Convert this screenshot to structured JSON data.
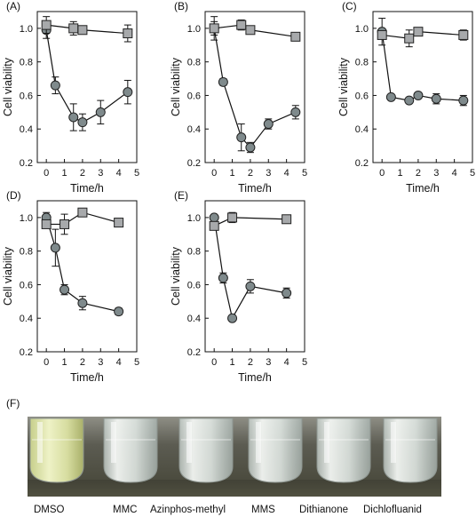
{
  "style": {
    "circle_fill": "#7f8a8c",
    "square_fill": "#a7a9ab",
    "marker_stroke": "#222222",
    "line_color": "#111111"
  },
  "chart_data": [
    {
      "type": "line",
      "panel_label": "(A)",
      "xlabel": "Time/h",
      "ylabel": "Cell viability",
      "xlim": [
        -0.5,
        5
      ],
      "ylim": [
        0.2,
        1.1
      ],
      "xticks": [
        0,
        1,
        2,
        3,
        4,
        5
      ],
      "yticks": [
        0.2,
        0.4,
        0.6,
        0.8,
        1.0
      ],
      "series": [
        {
          "marker": "circle",
          "x": [
            0,
            0.5,
            1.5,
            2,
            3,
            4.5
          ],
          "y": [
            0.99,
            0.66,
            0.47,
            0.44,
            0.5,
            0.62
          ],
          "err": [
            0.05,
            0.05,
            0.08,
            0.05,
            0.07,
            0.07
          ]
        },
        {
          "marker": "square",
          "x": [
            0,
            1.5,
            2,
            4.5
          ],
          "y": [
            1.02,
            1.0,
            0.99,
            0.97
          ],
          "err": [
            0.05,
            0.04,
            0.01,
            0.05
          ]
        }
      ]
    },
    {
      "type": "line",
      "panel_label": "(B)",
      "xlabel": "Time/h",
      "ylabel": "Cell viability",
      "xlim": [
        -0.5,
        5
      ],
      "ylim": [
        0.2,
        1.1
      ],
      "xticks": [
        0,
        1,
        2,
        3,
        4,
        5
      ],
      "yticks": [
        0.2,
        0.4,
        0.6,
        0.8,
        1.0
      ],
      "series": [
        {
          "marker": "circle",
          "x": [
            0,
            0.5,
            1.5,
            2,
            3,
            4.5
          ],
          "y": [
            1.0,
            0.68,
            0.35,
            0.29,
            0.43,
            0.5
          ],
          "err": [
            0.07,
            0.02,
            0.08,
            0.03,
            0.03,
            0.04
          ]
        },
        {
          "marker": "square",
          "x": [
            0,
            1.5,
            2,
            4.5
          ],
          "y": [
            1.0,
            1.02,
            0.99,
            0.95
          ],
          "err": [
            0.04,
            0.03,
            0.01,
            0.01
          ]
        }
      ]
    },
    {
      "type": "line",
      "panel_label": "(C)",
      "xlabel": "Time/h",
      "ylabel": "Cell viability",
      "xlim": [
        -0.5,
        5
      ],
      "ylim": [
        0.2,
        1.1
      ],
      "xticks": [
        0,
        1,
        2,
        3,
        4,
        5
      ],
      "yticks": [
        0.2,
        0.4,
        0.6,
        0.8,
        1.0
      ],
      "series": [
        {
          "marker": "circle",
          "x": [
            0,
            0.5,
            1.5,
            2,
            3,
            4.5
          ],
          "y": [
            0.98,
            0.59,
            0.57,
            0.6,
            0.58,
            0.57
          ],
          "err": [
            0.08,
            0.01,
            0.01,
            0.01,
            0.03,
            0.03
          ]
        },
        {
          "marker": "square",
          "x": [
            0,
            1.5,
            2,
            4.5
          ],
          "y": [
            0.96,
            0.94,
            0.98,
            0.96
          ],
          "err": [
            0.02,
            0.05,
            0.01,
            0.03
          ]
        }
      ]
    },
    {
      "type": "line",
      "panel_label": "(D)",
      "xlabel": "Time/h",
      "ylabel": "Cell viability",
      "xlim": [
        -0.5,
        5
      ],
      "ylim": [
        0.2,
        1.1
      ],
      "xticks": [
        0,
        1,
        2,
        3,
        4,
        5
      ],
      "yticks": [
        0.2,
        0.4,
        0.6,
        0.8,
        1.0
      ],
      "series": [
        {
          "marker": "circle",
          "x": [
            0,
            0.5,
            1,
            2,
            4
          ],
          "y": [
            1.0,
            0.82,
            0.57,
            0.49,
            0.44
          ],
          "err": [
            0.03,
            0.11,
            0.03,
            0.04,
            0.02
          ]
        },
        {
          "marker": "square",
          "x": [
            0,
            1,
            2,
            4
          ],
          "y": [
            0.96,
            0.96,
            1.03,
            0.97
          ],
          "err": [
            0.02,
            0.06,
            0.01,
            0.01
          ]
        }
      ]
    },
    {
      "type": "line",
      "panel_label": "(E)",
      "xlabel": "Time/h",
      "ylabel": "Cell viability",
      "xlim": [
        -0.5,
        5
      ],
      "ylim": [
        0.2,
        1.1
      ],
      "xticks": [
        0,
        1,
        2,
        3,
        4,
        5
      ],
      "yticks": [
        0.2,
        0.4,
        0.6,
        0.8,
        1.0
      ],
      "series": [
        {
          "marker": "circle",
          "x": [
            0,
            0.5,
            1,
            2,
            4
          ],
          "y": [
            1.0,
            0.64,
            0.4,
            0.59,
            0.55
          ],
          "err": [
            0.01,
            0.03,
            0.01,
            0.04,
            0.03
          ]
        },
        {
          "marker": "square",
          "x": [
            0,
            1,
            4
          ],
          "y": [
            0.95,
            1.0,
            0.99
          ],
          "err": [
            0.02,
            0.03,
            0.01
          ]
        }
      ]
    }
  ],
  "photo": {
    "panel_label": "(F)",
    "tube_labels": [
      "DMSO",
      "MMC",
      "Azinphos-methyl",
      "MMS",
      "Dithianone",
      "Dichlofluanid"
    ]
  }
}
